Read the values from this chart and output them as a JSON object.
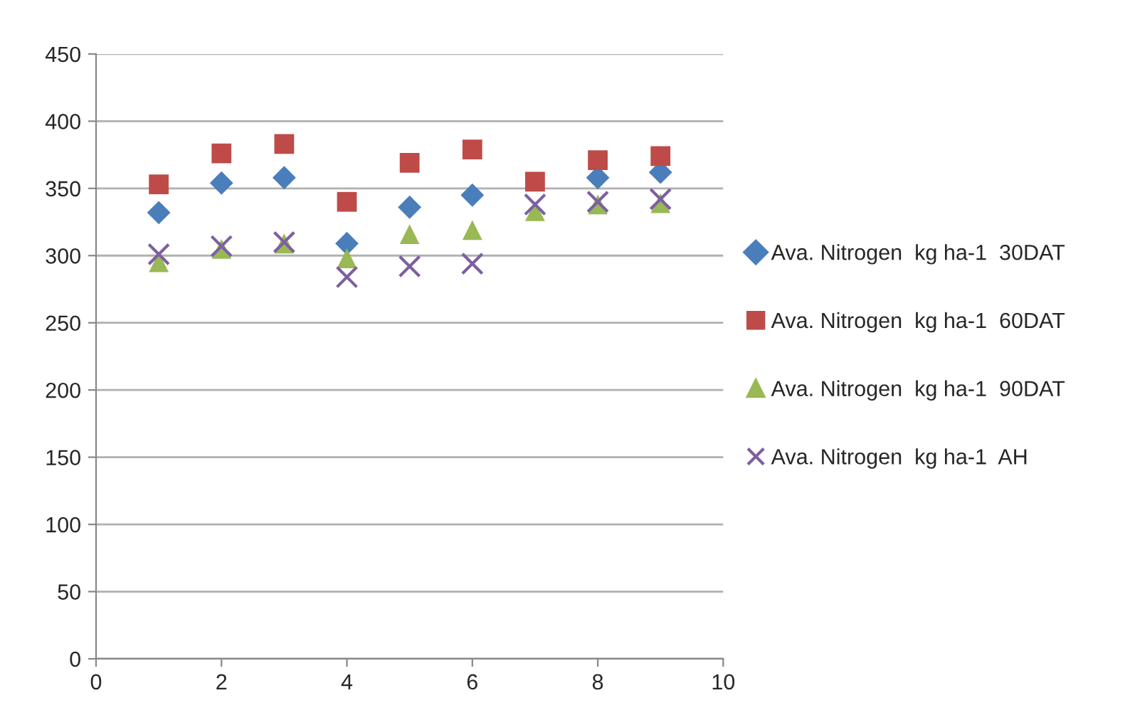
{
  "chart_data": {
    "type": "scatter",
    "x": [
      1,
      2,
      3,
      4,
      5,
      6,
      7,
      8,
      9
    ],
    "series": [
      {
        "name": "Ava. Nitrogen  kg ha-1  30DAT",
        "color": "#4a7ebb",
        "marker": "diamond",
        "values": [
          332,
          354,
          358,
          309,
          336,
          345,
          null,
          358,
          362
        ]
      },
      {
        "name": "Ava. Nitrogen  kg ha-1  60DAT",
        "color": "#be4b48",
        "marker": "square",
        "values": [
          353,
          376,
          383,
          340,
          369,
          379,
          355,
          371,
          374
        ]
      },
      {
        "name": "Ava. Nitrogen  kg ha-1  90DAT",
        "color": "#98b954",
        "marker": "triangle",
        "values": [
          295,
          305,
          309,
          298,
          316,
          319,
          333,
          338,
          339
        ]
      },
      {
        "name": "Ava. Nitrogen  kg ha-1  AH",
        "color": "#7d60a0",
        "marker": "cross",
        "values": [
          301,
          307,
          310,
          284,
          292,
          294,
          338,
          340,
          342
        ]
      }
    ],
    "xlim": [
      0,
      10
    ],
    "xticks": [
      0,
      2,
      4,
      6,
      8,
      10
    ],
    "ylim": [
      0,
      450
    ],
    "yticks": [
      0,
      50,
      100,
      150,
      200,
      250,
      300,
      350,
      400,
      450
    ],
    "grid": "y",
    "legend": "right"
  }
}
